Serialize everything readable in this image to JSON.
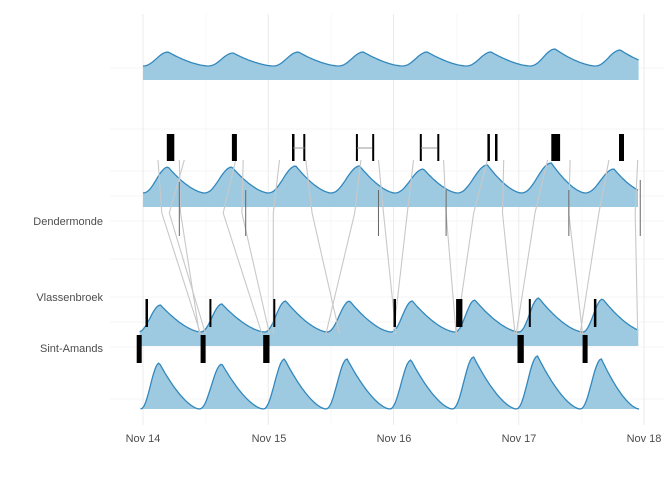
{
  "chart_data": {
    "type": "area",
    "title": "",
    "xlabel": "",
    "ylabel": "",
    "x_unit": "days since Nov 14 00:00",
    "xlim": [
      -0.03,
      4.02
    ],
    "x_ticks": [
      {
        "value": 0,
        "label": "Nov 14"
      },
      {
        "value": 1,
        "label": "Nov 15"
      },
      {
        "value": 2,
        "label": "Nov 16"
      },
      {
        "value": 3,
        "label": "Nov 17"
      },
      {
        "value": 4,
        "label": "Nov 18"
      }
    ],
    "y_stations": [
      {
        "name": "Dendermonde",
        "label": "Dendermonde"
      },
      {
        "name": "Vlassenbroek",
        "label": "Vlassenbroek"
      },
      {
        "name": "Sint-Amands",
        "label": "Sint-Amands"
      }
    ],
    "grid": true,
    "fill_color": "#9ecae1",
    "line_color": "#3288bd",
    "tide_peaks_days": [
      0.2,
      0.72,
      1.24,
      1.76,
      2.27,
      2.78,
      3.29,
      3.81
    ],
    "panels": [
      {
        "name": "Top tide profile",
        "troughs": [
          0.0,
          0.52,
          1.04,
          1.56,
          2.07,
          2.58,
          3.09,
          3.61
        ],
        "peaks": [
          0.2,
          0.72,
          1.24,
          1.76,
          2.27,
          2.78,
          3.29,
          3.81
        ],
        "continuous": true
      },
      {
        "name": "Dendermonde tide profile",
        "troughs": [
          0.0,
          0.49,
          1.0,
          1.5,
          2.01,
          2.51,
          3.02,
          3.53
        ],
        "peaks": [
          0.2,
          0.71,
          1.22,
          1.73,
          2.24,
          2.75,
          3.26,
          3.76
        ],
        "continuous": true
      },
      {
        "name": "Vlassenbroek tide profile",
        "troughs": [
          -0.04,
          0.46,
          0.97,
          1.47,
          1.98,
          2.49,
          3.0,
          3.51
        ],
        "peaks": [
          0.14,
          0.63,
          1.14,
          1.65,
          2.15,
          2.65,
          3.16,
          3.67
        ],
        "continuous": true
      },
      {
        "name": "Bottom tide profile",
        "troughs": [
          -0.02,
          0.45,
          0.96,
          1.46,
          1.97,
          2.47,
          2.98,
          3.49
        ],
        "peaks": [
          0.13,
          0.63,
          1.13,
          1.63,
          2.14,
          2.64,
          3.15,
          3.66
        ],
        "continuous": false
      }
    ],
    "tide_markers": [
      {
        "row": "upper",
        "start": 0.19,
        "end": 0.25
      },
      {
        "row": "upper",
        "start": 0.71,
        "end": 0.75
      },
      {
        "row": "upper",
        "start": 1.19,
        "end": 1.21
      },
      {
        "row": "upper",
        "start": 1.28,
        "end": 1.29
      },
      {
        "row": "upper",
        "start": 1.7,
        "end": 1.71
      },
      {
        "row": "upper",
        "start": 1.83,
        "end": 1.84
      },
      {
        "row": "upper",
        "start": 2.21,
        "end": 2.22
      },
      {
        "row": "upper",
        "start": 2.35,
        "end": 2.36
      },
      {
        "row": "upper",
        "start": 2.75,
        "end": 2.77
      },
      {
        "row": "upper",
        "start": 2.81,
        "end": 2.83
      },
      {
        "row": "upper",
        "start": 3.26,
        "end": 3.33
      },
      {
        "row": "upper",
        "start": 3.8,
        "end": 3.84
      },
      {
        "row": "Vlassenbroek",
        "start": 0.02,
        "end": 0.04
      },
      {
        "row": "Vlassenbroek",
        "start": 0.53,
        "end": 0.54
      },
      {
        "row": "Vlassenbroek",
        "start": 1.04,
        "end": 1.05
      },
      {
        "row": "Vlassenbroek",
        "start": 2.0,
        "end": 2.02
      },
      {
        "row": "Vlassenbroek",
        "start": 2.5,
        "end": 2.55
      },
      {
        "row": "Vlassenbroek",
        "start": 3.08,
        "end": 3.09
      },
      {
        "row": "Vlassenbroek",
        "start": 3.6,
        "end": 3.62
      },
      {
        "row": "Sint-Amands",
        "start": -0.05,
        "end": -0.01
      },
      {
        "row": "Sint-Amands",
        "start": 0.46,
        "end": 0.5
      },
      {
        "row": "Sint-Amands",
        "start": 0.96,
        "end": 1.01
      },
      {
        "row": "Sint-Amands",
        "start": 2.99,
        "end": 3.04
      },
      {
        "row": "Sint-Amands",
        "start": 3.51,
        "end": 3.55
      }
    ],
    "propagation_links": [
      [
        0.12,
        0.15,
        0.46
      ],
      [
        0.29,
        0.3,
        0.45
      ],
      [
        0.33,
        0.21,
        0.5
      ],
      [
        0.74,
        0.64,
        0.95
      ],
      [
        0.8,
        0.79,
        1.01
      ],
      [
        1.09,
        1.04,
        1.04
      ],
      [
        1.3,
        1.35,
        1.57
      ],
      [
        1.74,
        1.69,
        1.46
      ],
      [
        1.88,
        1.92,
        2.02
      ],
      [
        2.16,
        2.11,
        2.0
      ],
      [
        2.4,
        2.42,
        2.5
      ],
      [
        2.75,
        2.64,
        2.5
      ],
      [
        2.88,
        2.87,
        2.97
      ],
      [
        3.23,
        3.13,
        2.98
      ],
      [
        3.41,
        3.4,
        3.51
      ],
      [
        3.72,
        3.64,
        3.49
      ],
      [
        3.95,
        3.93,
        3.95
      ]
    ]
  }
}
